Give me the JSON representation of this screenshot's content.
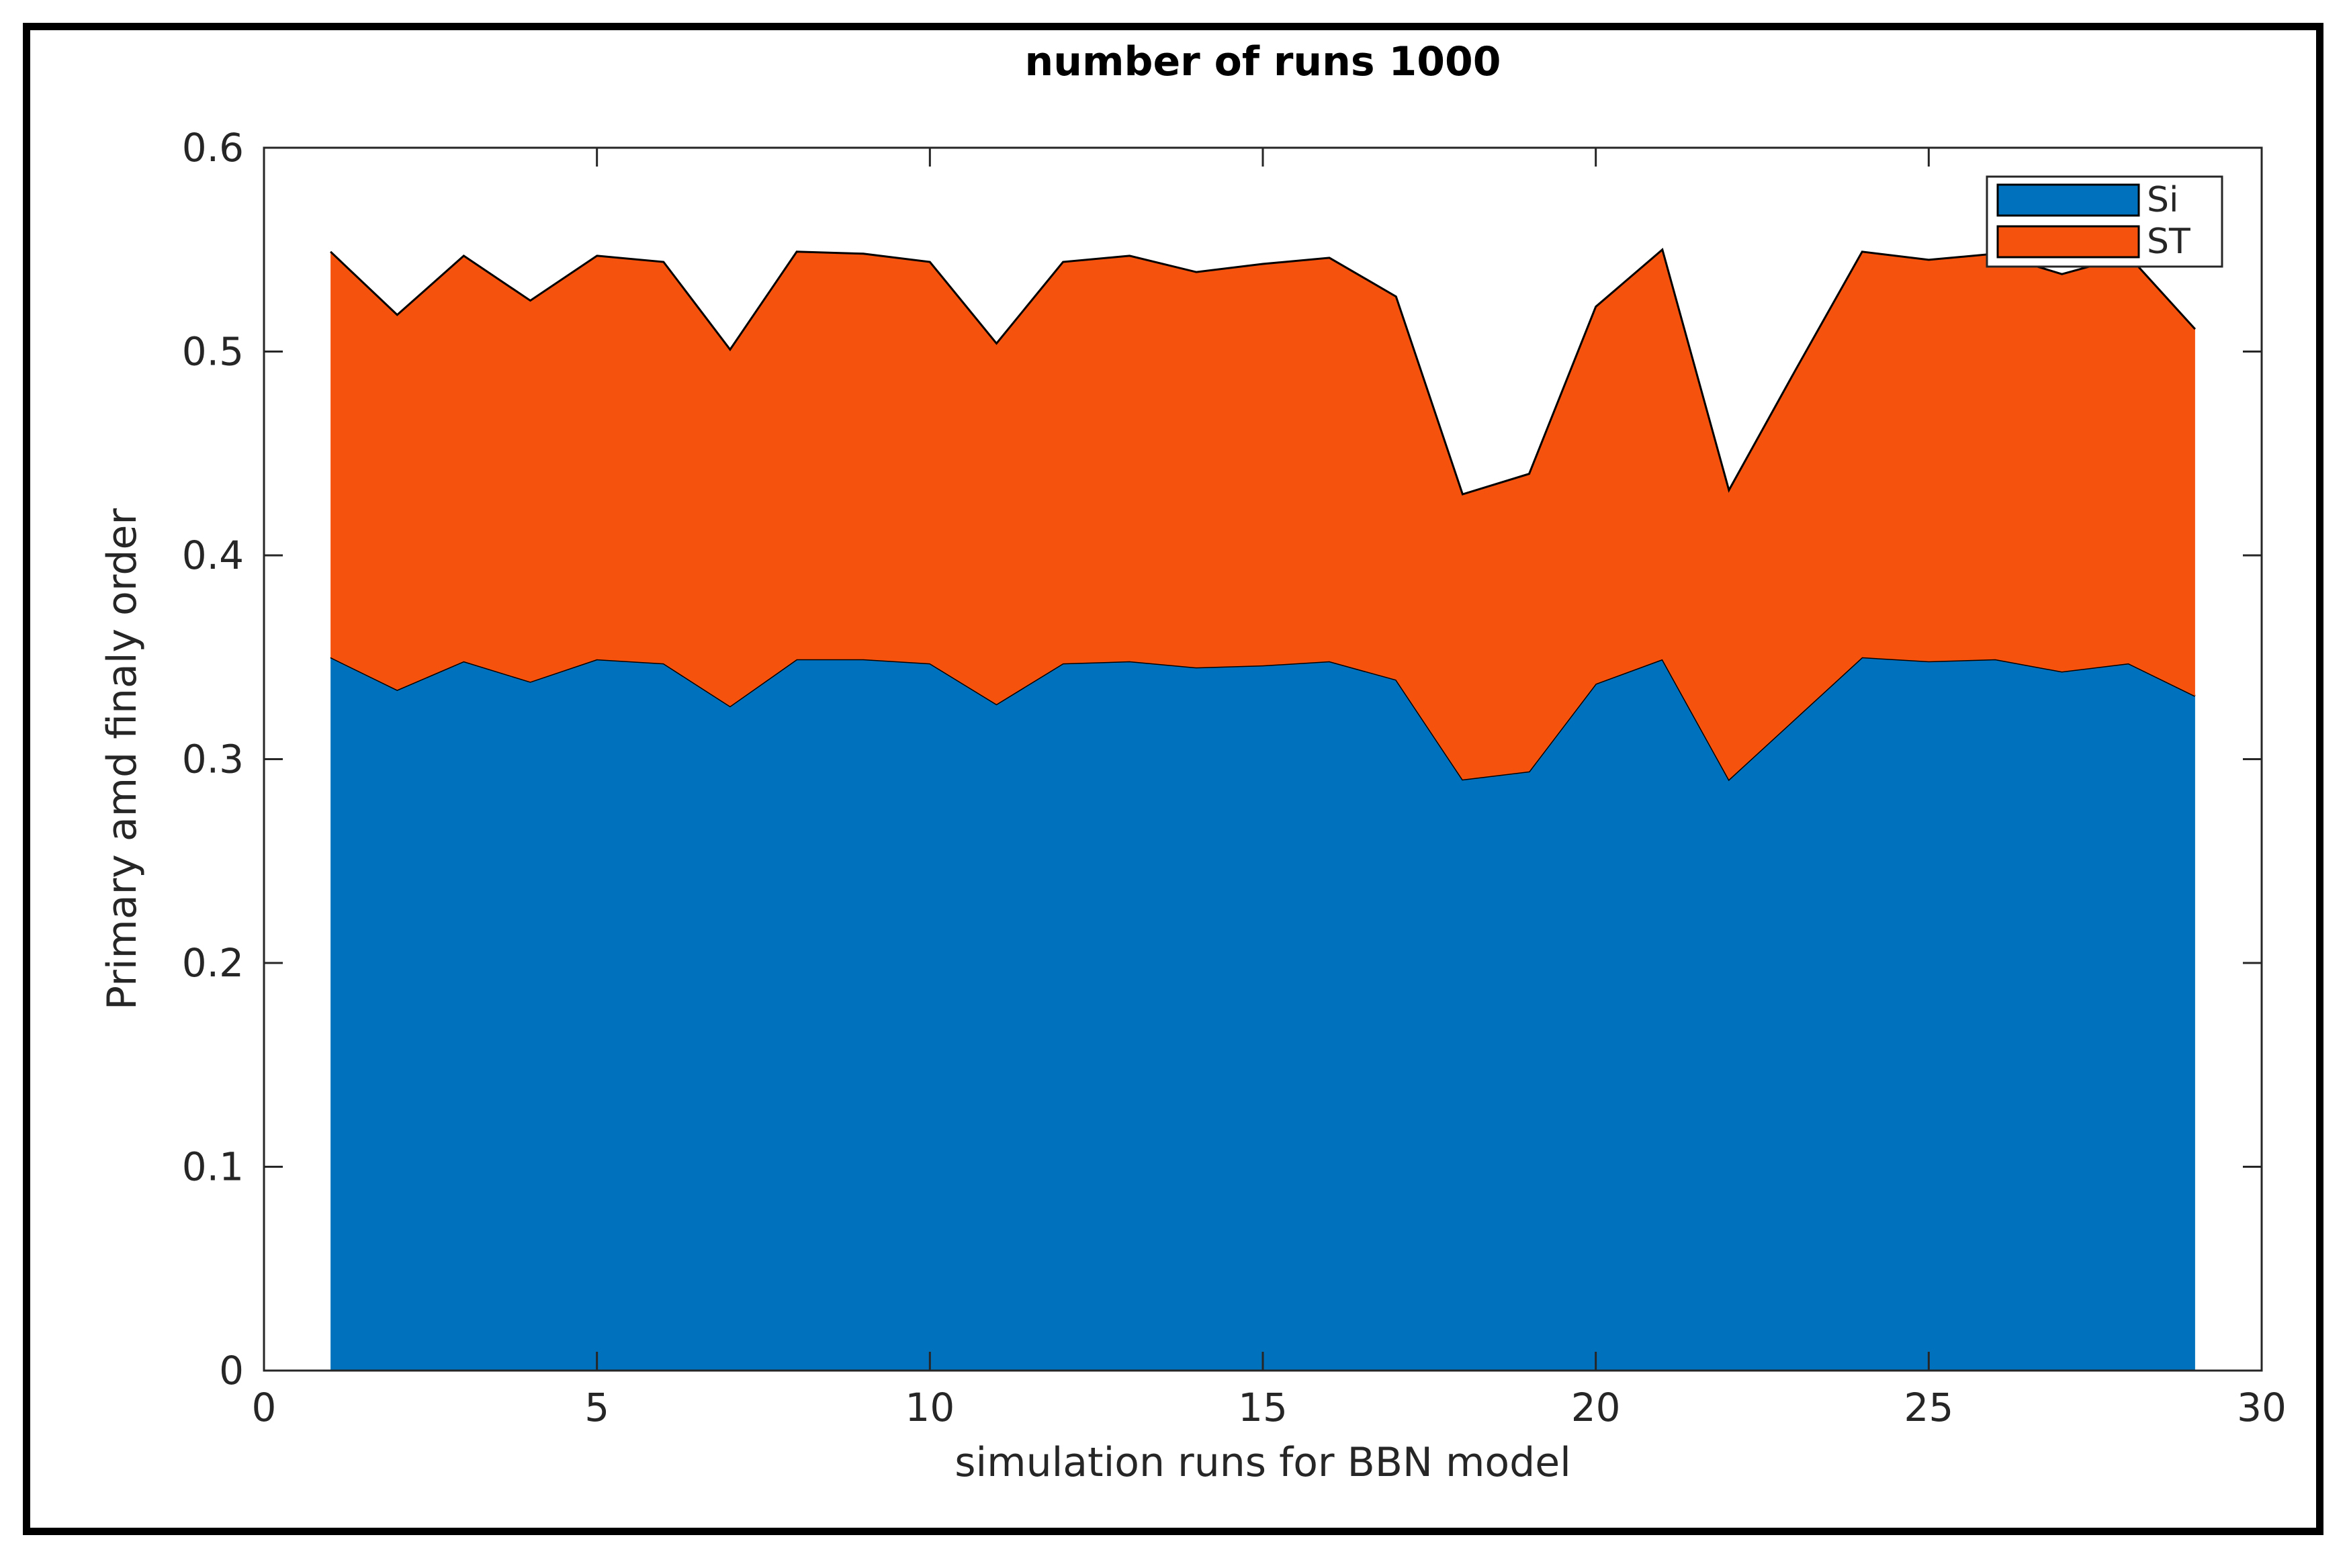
{
  "chart_data": {
    "type": "area",
    "title": "number of runs 1000",
    "xlabel": "simulation runs for BBN model",
    "ylabel": "Primary amd finaly order",
    "xlim": [
      0,
      30
    ],
    "ylim": [
      0,
      0.6
    ],
    "xticks": [
      0,
      5,
      10,
      15,
      20,
      25,
      30
    ],
    "yticks": [
      0,
      0.1,
      0.2,
      0.3,
      0.4,
      0.5,
      0.6
    ],
    "xtick_labels": [
      "0",
      "5",
      "10",
      "15",
      "20",
      "25",
      "30"
    ],
    "ytick_labels": [
      "0",
      "0.1",
      "0.2",
      "0.3",
      "0.4",
      "0.5",
      "0.6"
    ],
    "stacked": true,
    "legend_position": "top-right",
    "grid": false,
    "x": [
      1,
      2,
      3,
      4,
      5,
      6,
      7,
      8,
      9,
      10,
      11,
      12,
      13,
      14,
      15,
      16,
      17,
      18,
      19,
      20,
      21,
      22,
      23,
      24,
      25,
      26,
      27,
      28,
      29
    ],
    "series": [
      {
        "name": "Si",
        "color": "#0072BD",
        "values": [
          0.35,
          0.334,
          0.348,
          0.338,
          0.349,
          0.347,
          0.326,
          0.349,
          0.349,
          0.347,
          0.327,
          0.347,
          0.348,
          0.345,
          0.346,
          0.348,
          0.339,
          0.29,
          0.294,
          0.337,
          0.349,
          0.29,
          0.32,
          0.35,
          0.348,
          0.349,
          0.343,
          0.347,
          0.331
        ]
      },
      {
        "name": "ST",
        "color": "#F5520D",
        "values": [
          0.199,
          0.184,
          0.199,
          0.187,
          0.198,
          0.197,
          0.175,
          0.2,
          0.199,
          0.197,
          0.177,
          0.197,
          0.199,
          0.194,
          0.197,
          0.198,
          0.188,
          0.14,
          0.146,
          0.185,
          0.201,
          0.142,
          0.171,
          0.199,
          0.197,
          0.199,
          0.195,
          0.2,
          0.18
        ]
      }
    ]
  }
}
